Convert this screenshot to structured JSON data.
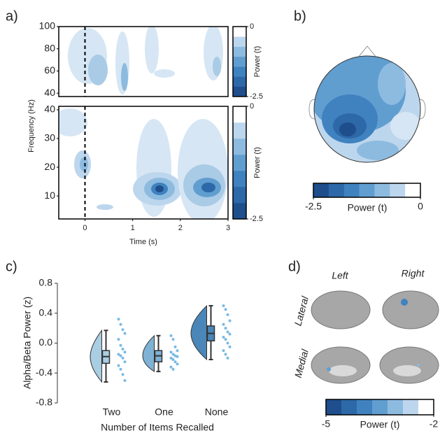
{
  "chart_data": [
    {
      "type": "heatmap",
      "panel_label": "a)",
      "xlim": [
        -0.55,
        3
      ],
      "ylim": [
        37,
        100
      ],
      "yticks": [
        40,
        60,
        80,
        100
      ],
      "event_time": 0,
      "colorbar": {
        "lim": [
          -2.5,
          0
        ],
        "ticks": [
          0,
          -2.5
        ],
        "label": "Power (t)",
        "colors": [
          "#1f4e8c",
          "#2d68a8",
          "#3f82bf",
          "#619ed0",
          "#8dbbe0",
          "#bcd6ed",
          "#ffffff"
        ]
      }
    },
    {
      "type": "heatmap",
      "xlim": [
        -0.55,
        3
      ],
      "ylim": [
        2,
        41.2
      ],
      "xticks": [
        0,
        1,
        2,
        3
      ],
      "yticks": [
        10,
        20,
        30,
        40
      ],
      "event_time": 0,
      "xlabel": "Time (s)",
      "ylabel": "Frequency (Hz)",
      "colorbar": {
        "lim": [
          -2.5,
          0
        ],
        "ticks": [
          0,
          -2.5
        ],
        "label": "Power (t)",
        "colors": [
          "#1f4e8c",
          "#2d68a8",
          "#3f82bf",
          "#619ed0",
          "#8dbbe0",
          "#bcd6ed",
          "#ffffff"
        ]
      }
    },
    {
      "type": "topomap",
      "panel_label": "b)",
      "colorbar": {
        "lim": [
          -2.5,
          0
        ],
        "ticks": [
          -2.5,
          0
        ],
        "label": "Power (t)",
        "colors": [
          "#1f4e8c",
          "#2d68a8",
          "#3f82bf",
          "#619ed0",
          "#8dbbe0",
          "#bcd6ed",
          "#ffffff"
        ]
      }
    },
    {
      "type": "raincloud",
      "panel_label": "c)",
      "categories": [
        "Two",
        "One",
        "None"
      ],
      "ylim": [
        -0.8,
        0.8
      ],
      "yticks": [
        -0.8,
        -0.4,
        {
          "value": 0,
          "label": "0.0"
        },
        0.4,
        0.8
      ],
      "ylabel": "Alpha/Beta Power (z)",
      "xlabel": "Number of Items Recalled",
      "colors": [
        "#a9cde2",
        "#7fb2d4",
        "#4a86b8"
      ],
      "point_color": "#5aa9dc",
      "boxes": [
        {
          "min": -0.52,
          "q1": -0.27,
          "median": -0.18,
          "q3": -0.1,
          "max": 0.17
        },
        {
          "min": -0.38,
          "q1": -0.25,
          "median": -0.17,
          "q3": -0.1,
          "max": 0.1
        },
        {
          "min": -0.22,
          "q1": 0.03,
          "median": 0.13,
          "q3": 0.23,
          "max": 0.5
        }
      ],
      "points": [
        [
          0.32,
          0.25,
          0.18,
          0.13,
          0.05,
          -0.03,
          -0.08,
          -0.12,
          -0.15,
          -0.17,
          -0.2,
          -0.25,
          -0.3,
          -0.35,
          -0.42,
          -0.5
        ],
        [
          0.1,
          0.05,
          -0.05,
          -0.1,
          -0.12,
          -0.15,
          -0.17,
          -0.18,
          -0.2,
          -0.22,
          -0.25,
          -0.28,
          -0.32,
          -0.35
        ],
        [
          0.5,
          0.45,
          0.38,
          0.3,
          0.25,
          0.2,
          0.15,
          0.12,
          0.08,
          0.05,
          0.0,
          -0.05,
          -0.1,
          -0.15,
          -0.2
        ]
      ]
    },
    {
      "type": "brain",
      "panel_label": "d)",
      "columns": [
        "Left",
        "Right"
      ],
      "rows": [
        "Lateral",
        "Medial"
      ],
      "colorbar": {
        "lim": [
          -5,
          -2
        ],
        "ticks": [
          -5,
          -2
        ],
        "label": "Power (t)",
        "colors": [
          "#1f4e8c",
          "#2d68a8",
          "#3f82bf",
          "#619ed0",
          "#8dbbe0",
          "#bcd6ed",
          "#ffffff"
        ]
      }
    }
  ]
}
